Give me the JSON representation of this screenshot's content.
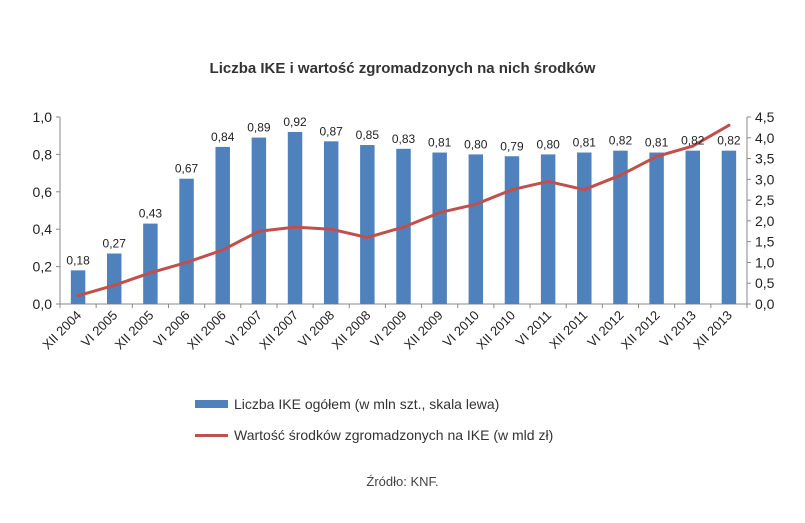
{
  "chart_data": {
    "type": "bar",
    "title": "Liczba IKE i wartość zgromadzonych na nich środków",
    "categories": [
      "XII 2004",
      "VI 2005",
      "XII 2005",
      "VI 2006",
      "XII 2006",
      "VI 2007",
      "XII 2007",
      "VI 2008",
      "XII 2008",
      "VI 2009",
      "XII 2009",
      "VI 2010",
      "XII 2010",
      "VI 2011",
      "XII 2011",
      "VI 2012",
      "XII 2012",
      "VI 2013",
      "XII 2013"
    ],
    "series": [
      {
        "name": "Liczba IKE ogółem (w mln szt., skala lewa)",
        "type": "bar",
        "axis": "left",
        "color": "#4f81bd",
        "values": [
          0.18,
          0.27,
          0.43,
          0.67,
          0.84,
          0.89,
          0.92,
          0.87,
          0.85,
          0.83,
          0.81,
          0.8,
          0.79,
          0.8,
          0.81,
          0.82,
          0.81,
          0.82,
          0.82
        ],
        "data_labels": [
          "0,18",
          "0,27",
          "0,43",
          "0,67",
          "0,84",
          "0,89",
          "0,92",
          "0,87",
          "0,85",
          "0,83",
          "0,81",
          "0,80",
          "0,79",
          "0,80",
          "0,81",
          "0,82",
          "0,81",
          "0,82",
          "0,82"
        ]
      },
      {
        "name": "Wartość środków zgromadzonych na IKE (w mld zł)",
        "type": "line",
        "axis": "right",
        "color": "#c0504d",
        "values": [
          0.2,
          0.45,
          0.75,
          1.0,
          1.3,
          1.75,
          1.85,
          1.8,
          1.6,
          1.85,
          2.2,
          2.4,
          2.75,
          2.95,
          2.75,
          3.1,
          3.55,
          3.8,
          4.3
        ]
      }
    ],
    "y_left": {
      "ylim": [
        0,
        1.0
      ],
      "ticks": [
        "0,0",
        "0,2",
        "0,4",
        "0,6",
        "0,8",
        "1,0"
      ]
    },
    "y_right": {
      "ylim": [
        0,
        4.5
      ],
      "ticks": [
        "0,0",
        "0,5",
        "1,0",
        "1,5",
        "2,0",
        "2,5",
        "3,0",
        "3,5",
        "4,0",
        "4,5"
      ]
    },
    "grid": false,
    "legend_position": "bottom"
  },
  "source": "Źródło: KNF."
}
